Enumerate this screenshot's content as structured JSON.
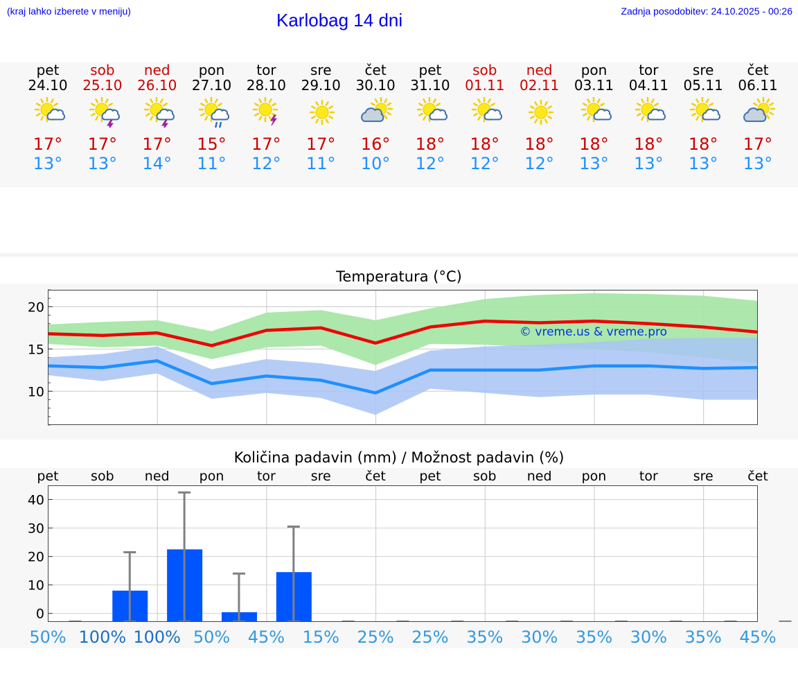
{
  "header": {
    "menu_note": "(kraj lahko izberete v meniju)",
    "title": "Karlobag 14 dni",
    "update_note": "Zadnja posodobitev: 24.10.2025 - 00:26"
  },
  "days": [
    {
      "name": "pet",
      "date": "24.10",
      "weekend": false,
      "icon": "sun-cloud-icon",
      "tmax": "17°",
      "tmin": "13°"
    },
    {
      "name": "sob",
      "date": "25.10",
      "weekend": true,
      "icon": "sun-cloud-thunder-icon",
      "tmax": "17°",
      "tmin": "13°"
    },
    {
      "name": "ned",
      "date": "26.10",
      "weekend": true,
      "icon": "sun-cloud-thunder-icon",
      "tmax": "17°",
      "tmin": "14°"
    },
    {
      "name": "pon",
      "date": "27.10",
      "weekend": false,
      "icon": "sun-cloud-rain-icon",
      "tmax": "15°",
      "tmin": "11°"
    },
    {
      "name": "tor",
      "date": "28.10",
      "weekend": false,
      "icon": "sun-thunder-icon",
      "tmax": "17°",
      "tmin": "12°"
    },
    {
      "name": "sre",
      "date": "29.10",
      "weekend": false,
      "icon": "sun-icon",
      "tmax": "17°",
      "tmin": "11°"
    },
    {
      "name": "čet",
      "date": "30.10",
      "weekend": false,
      "icon": "cloud-sun-icon",
      "tmax": "16°",
      "tmin": "10°"
    },
    {
      "name": "pet",
      "date": "31.10",
      "weekend": false,
      "icon": "sun-cloud-icon",
      "tmax": "18°",
      "tmin": "12°"
    },
    {
      "name": "sob",
      "date": "01.11",
      "weekend": true,
      "icon": "sun-cloud-icon",
      "tmax": "18°",
      "tmin": "12°"
    },
    {
      "name": "ned",
      "date": "02.11",
      "weekend": true,
      "icon": "sun-icon",
      "tmax": "18°",
      "tmin": "12°"
    },
    {
      "name": "pon",
      "date": "03.11",
      "weekend": false,
      "icon": "sun-cloud-icon",
      "tmax": "18°",
      "tmin": "13°"
    },
    {
      "name": "tor",
      "date": "04.11",
      "weekend": false,
      "icon": "sun-cloud-icon",
      "tmax": "18°",
      "tmin": "13°"
    },
    {
      "name": "sre",
      "date": "05.11",
      "weekend": false,
      "icon": "sun-cloud-icon",
      "tmax": "18°",
      "tmin": "13°"
    },
    {
      "name": "čet",
      "date": "06.11",
      "weekend": false,
      "icon": "cloud-sun-icon",
      "tmax": "17°",
      "tmin": "13°"
    }
  ],
  "colors": {
    "max_line": "#ee0000",
    "max_band": "#a8e6a8",
    "min_line": "#1e90ff",
    "min_band": "#a8c4f4",
    "precip_bar": "#0055ff",
    "whisker": "#808080",
    "prob_text": "#3399dd",
    "prob_text_full": "#1a6fc4"
  },
  "chart_data": [
    {
      "type": "line",
      "title": "Temperatura (°C)",
      "xlabel": "",
      "ylabel": "",
      "ylim": [
        6,
        22
      ],
      "yticks": [
        10,
        15,
        20
      ],
      "grid": true,
      "watermark": "© vreme.us & vreme.pro",
      "categories": [
        "pet",
        "sob",
        "ned",
        "pon",
        "tor",
        "sre",
        "čet",
        "pet",
        "sob",
        "ned",
        "pon",
        "tor",
        "sre",
        "čet"
      ],
      "series": [
        {
          "name": "max",
          "values": [
            16.8,
            16.6,
            16.9,
            15.4,
            17.2,
            17.5,
            15.7,
            17.6,
            18.3,
            18.1,
            18.3,
            18.0,
            17.6,
            17.0
          ]
        },
        {
          "name": "max_range_high",
          "values": [
            17.9,
            18.2,
            18.4,
            17.1,
            19.3,
            19.6,
            18.4,
            19.8,
            20.9,
            21.4,
            21.6,
            21.5,
            21.3,
            20.7
          ]
        },
        {
          "name": "max_range_low",
          "values": [
            15.6,
            15.2,
            15.4,
            13.8,
            15.2,
            15.4,
            13.1,
            15.6,
            15.5,
            15.2,
            15.0,
            14.6,
            14.0,
            13.3
          ]
        },
        {
          "name": "min",
          "values": [
            13.0,
            12.8,
            13.6,
            10.9,
            11.8,
            11.3,
            9.8,
            12.5,
            12.5,
            12.5,
            13.0,
            13.0,
            12.7,
            12.8
          ]
        },
        {
          "name": "min_range_high",
          "values": [
            14.0,
            14.4,
            15.3,
            12.6,
            13.8,
            13.3,
            12.4,
            14.8,
            15.3,
            15.5,
            15.8,
            16.2,
            16.3,
            16.3
          ]
        },
        {
          "name": "min_range_low",
          "values": [
            11.9,
            11.2,
            12.1,
            9.1,
            9.8,
            9.2,
            7.2,
            10.3,
            9.8,
            9.3,
            9.6,
            9.6,
            9.0,
            9.0
          ]
        }
      ]
    },
    {
      "type": "bar",
      "title": "Količina padavin (mm) / Možnost padavin (%)",
      "xlabel": "",
      "ylabel": "",
      "ylim": [
        -3,
        45
      ],
      "yticks": [
        0,
        10,
        20,
        30,
        40
      ],
      "grid": true,
      "categories": [
        "pet",
        "sob",
        "ned",
        "pon",
        "tor",
        "sre",
        "čet",
        "pet",
        "sob",
        "ned",
        "pon",
        "tor",
        "sre",
        "čet"
      ],
      "values": [
        0,
        8,
        22.5,
        0.4,
        14.5,
        0,
        0,
        0,
        0,
        0,
        0,
        0,
        0,
        0
      ],
      "error_high": [
        0,
        21.5,
        42.5,
        14,
        30.5,
        0,
        0,
        0,
        0,
        0,
        0,
        0,
        0,
        0
      ],
      "probability": [
        "50%",
        "100%",
        "100%",
        "50%",
        "45%",
        "15%",
        "25%",
        "25%",
        "35%",
        "30%",
        "35%",
        "30%",
        "35%",
        "45%"
      ]
    }
  ]
}
